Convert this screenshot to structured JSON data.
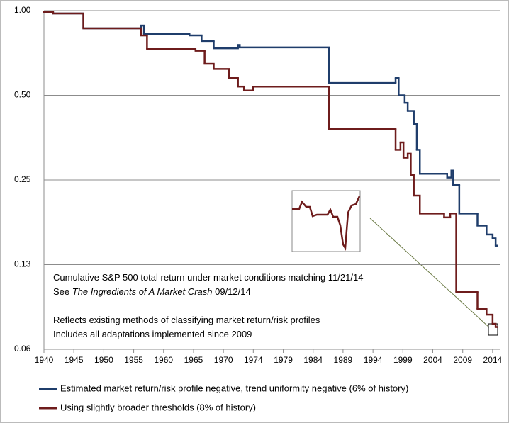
{
  "chart_data": {
    "type": "line",
    "step": true,
    "log_scale": true,
    "grid": true,
    "xlim": [
      1940,
      2015.3
    ],
    "ylim": [
      0.0625,
      1.0
    ],
    "yticks": [
      {
        "value": 1.0,
        "label": "1.00"
      },
      {
        "value": 0.5,
        "label": "0.50"
      },
      0.25,
      {
        "value": 0.125,
        "label": "0.13"
      },
      {
        "value": 0.0625,
        "label": "0.06"
      }
    ],
    "xticks": [
      {
        "value": 1940,
        "label": "1940"
      },
      {
        "value": 1944.93,
        "label": "1945"
      },
      {
        "value": 1949.87,
        "label": "1950"
      },
      {
        "value": 1954.8,
        "label": "1955"
      },
      {
        "value": 1959.73,
        "label": "1960"
      },
      {
        "value": 1964.67,
        "label": "1965"
      },
      {
        "value": 1969.6,
        "label": "1970"
      },
      {
        "value": 1974.53,
        "label": "1974"
      },
      {
        "value": 1979.47,
        "label": "1979"
      },
      {
        "value": 1984.4,
        "label": "1984"
      },
      {
        "value": 1989.33,
        "label": "1989"
      },
      {
        "value": 1994.27,
        "label": "1994"
      },
      {
        "value": 1999.2,
        "label": "1999"
      },
      {
        "value": 2004.13,
        "label": "2004"
      },
      {
        "value": 2009.07,
        "label": "2009"
      },
      {
        "value": 2014,
        "label": "2014"
      }
    ],
    "annotations": [
      [
        "Cumulative S&P 500 total return under market conditions matching 11/21/14"
      ],
      [
        "See ",
        "The Ingredients of A Market Crash",
        " 09/12/14"
      ],
      [
        "Reflects existing methods of classifying market return/risk profiles"
      ],
      [
        "Includes all adaptations implemented since 2009"
      ]
    ],
    "series": [
      {
        "name": "Estimated market return/risk profile negative, trend uniformity negative (6% of history)",
        "color": "#1f3d6b",
        "x": [
          1940,
          1941.5,
          1946.5,
          1956,
          1956.5,
          1964,
          1966,
          1968,
          1972,
          1972.3,
          1987,
          1998,
          1998.5,
          1999.5,
          2000,
          2001,
          2001.5,
          2002,
          2006.5,
          2007.2,
          2007.5,
          2008.5,
          2011.5,
          2013,
          2014,
          2014.5
        ],
        "values": [
          0.99,
          0.977,
          0.865,
          0.885,
          0.826,
          0.816,
          0.78,
          0.735,
          0.755,
          0.74,
          0.553,
          0.576,
          0.5,
          0.47,
          0.44,
          0.395,
          0.32,
          0.263,
          0.255,
          0.27,
          0.24,
          0.19,
          0.172,
          0.16,
          0.155,
          0.146
        ]
      },
      {
        "name": "Using slightly broader thresholds (8% of history)",
        "color": "#6e1c1c",
        "x": [
          1940,
          1941.5,
          1946.5,
          1956,
          1957,
          1965,
          1966.5,
          1968,
          1970.5,
          1972,
          1973,
          1974.5,
          1987,
          1998,
          1998.8,
          1999.3,
          2000,
          2000.5,
          2001,
          2002,
          2006,
          2007,
          2008,
          2011.5,
          2013,
          2014,
          2014.5
        ],
        "values": [
          0.99,
          0.977,
          0.865,
          0.816,
          0.73,
          0.72,
          0.647,
          0.62,
          0.576,
          0.537,
          0.52,
          0.537,
          0.38,
          0.32,
          0.34,
          0.3,
          0.31,
          0.26,
          0.22,
          0.19,
          0.184,
          0.19,
          0.1,
          0.087,
          0.083,
          0.077,
          0.075
        ]
      }
    ]
  }
}
